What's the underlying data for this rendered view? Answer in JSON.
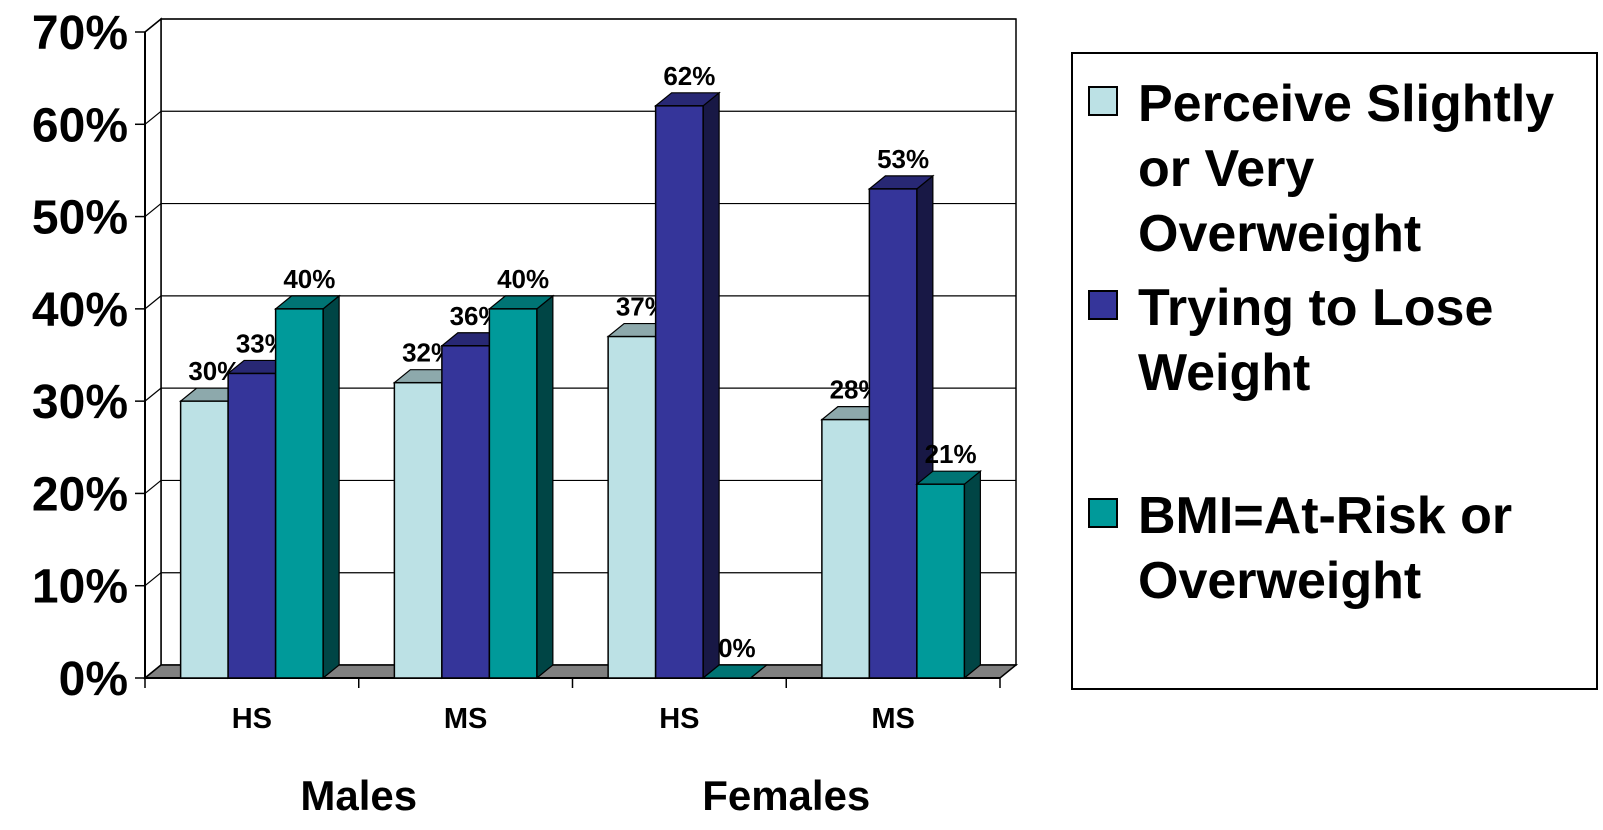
{
  "chart_data": {
    "type": "bar",
    "categories": [
      "HS",
      "MS",
      "HS",
      "MS"
    ],
    "groups": [
      {
        "label": "Males",
        "categories": [
          "HS",
          "MS"
        ]
      },
      {
        "label": "Females",
        "categories": [
          "HS",
          "MS"
        ]
      }
    ],
    "series": [
      {
        "name": "Perceive Slightly or Very Overweight",
        "values": [
          30,
          32,
          37,
          28
        ],
        "labels": [
          "30%",
          "32%",
          "37%",
          "28%"
        ],
        "color": "#BCE1E5"
      },
      {
        "name": "Trying to Lose Weight",
        "values": [
          33,
          36,
          62,
          53
        ],
        "labels": [
          "33%",
          "36%",
          "62%",
          "53%"
        ],
        "color": "#35359A"
      },
      {
        "name": "BMI=At-Risk or Overweight",
        "values": [
          40,
          40,
          0,
          21
        ],
        "labels": [
          "40%",
          "40%",
          "0%",
          "21%"
        ],
        "color": "#009A9A"
      }
    ],
    "yticks": [
      "0%",
      "10%",
      "20%",
      "30%",
      "40%",
      "50%",
      "60%",
      "70%"
    ],
    "ylim": [
      0,
      70
    ],
    "grid": true,
    "legend_position": "right",
    "three_d": true
  },
  "legend": {
    "items": [
      {
        "label": "Perceive Slightly or Very Overweight",
        "color": "#BCE1E5"
      },
      {
        "label": "Trying to Lose Weight",
        "color": "#35359A"
      },
      {
        "label": "BMI=At-Risk or Overweight",
        "color": "#009A9A"
      }
    ]
  }
}
